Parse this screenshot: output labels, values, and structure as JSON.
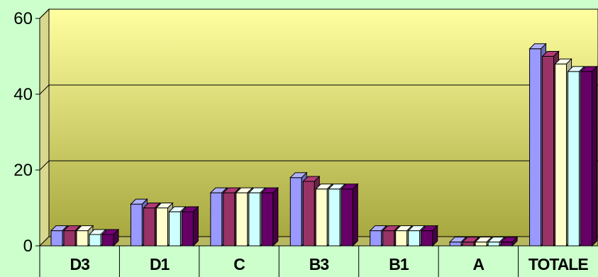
{
  "chart_data": {
    "type": "bar",
    "title": "",
    "xlabel": "",
    "ylabel": "",
    "ylim": [
      0,
      60
    ],
    "yticks": [
      0,
      20,
      40,
      60
    ],
    "grid": true,
    "legend": "none",
    "categories": [
      "D3",
      "D1",
      "C",
      "B3",
      "B1",
      "A",
      "TOTALE"
    ],
    "series": [
      {
        "color": "#9999ff",
        "values": [
          4,
          11,
          14,
          18,
          4,
          1,
          52
        ]
      },
      {
        "color": "#993366",
        "values": [
          4,
          10,
          14,
          17,
          4,
          1,
          50
        ]
      },
      {
        "color": "#ffffcc",
        "values": [
          4,
          10,
          14,
          15,
          4,
          1,
          48
        ]
      },
      {
        "color": "#ccffff",
        "values": [
          3,
          9,
          14,
          15,
          4,
          1,
          46
        ]
      },
      {
        "color": "#660066",
        "values": [
          3,
          9,
          14,
          15,
          4,
          1,
          46
        ]
      }
    ],
    "colors": {
      "background": "#ccffcc",
      "plot_top": "#ffffa0",
      "plot_bottom": "#a8a840",
      "wall_side": "#d8d890",
      "floor": "#b8b860"
    }
  }
}
